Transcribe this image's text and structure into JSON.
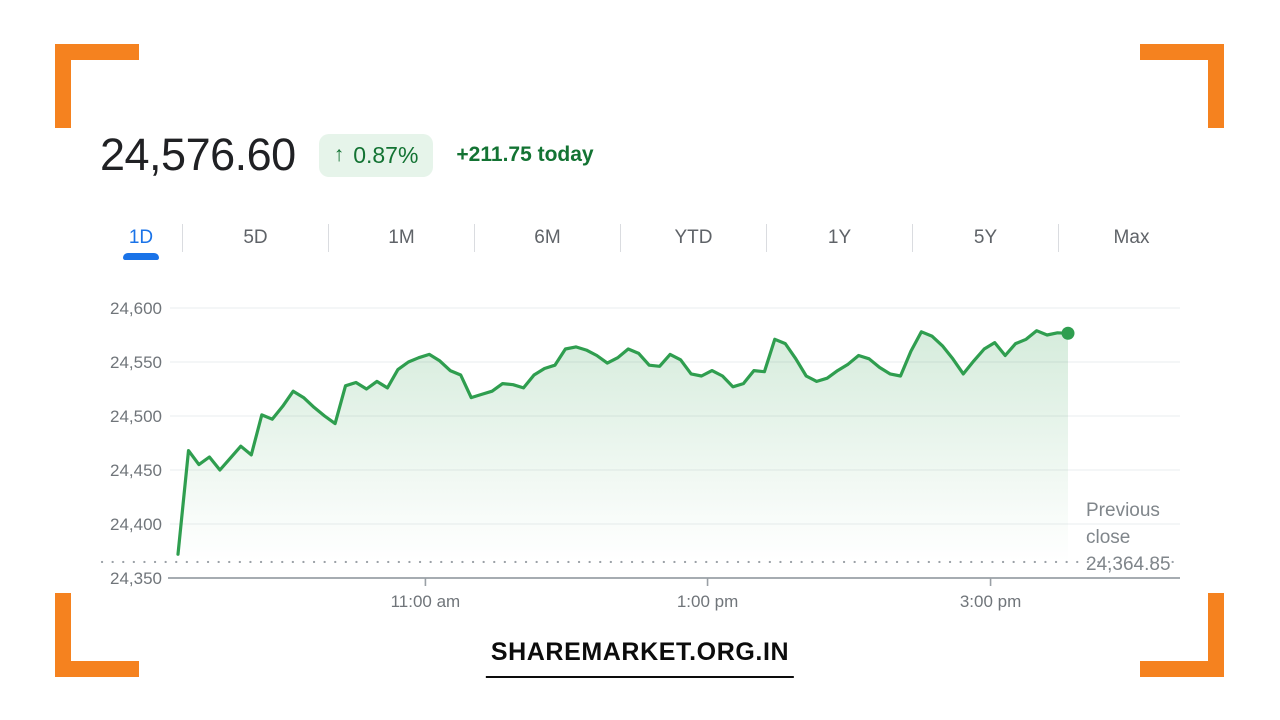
{
  "theme": {
    "accent_orange": "#F5821F",
    "up_green": "#137333",
    "badge_bg": "#e6f4ea",
    "active_blue": "#1a73e8",
    "text_dark": "#202124",
    "text_gray": "#5f6368",
    "axis_gray": "#70757a",
    "prevclose_gray": "#80868b",
    "divider": "#dadce0",
    "grid": "#eef0f2",
    "axis_line": "#9aa0a6"
  },
  "brand": {
    "watermark": "SHAREMARKET.ORG.IN"
  },
  "quote": {
    "price": "24,576.60",
    "change_arrow": "↑",
    "change_percent": "0.87%",
    "change_absolute": "+211.75 today"
  },
  "range_tabs": {
    "items": [
      {
        "label": "1D",
        "active": true
      },
      {
        "label": "5D",
        "active": false
      },
      {
        "label": "1M",
        "active": false
      },
      {
        "label": "6M",
        "active": false
      },
      {
        "label": "YTD",
        "active": false
      },
      {
        "label": "1Y",
        "active": false
      },
      {
        "label": "5Y",
        "active": false
      },
      {
        "label": "Max",
        "active": false
      }
    ]
  },
  "chart_data": {
    "type": "area",
    "line_color": "#2f9e4f",
    "grid": true,
    "ylim": [
      24350,
      24610
    ],
    "y_ticks": [
      "24,600",
      "24,550",
      "24,500",
      "24,450",
      "24,400",
      "24,350"
    ],
    "y_tick_values": [
      24600,
      24550,
      24500,
      24450,
      24400,
      24350
    ],
    "x_ticks": [
      {
        "label": "11:00 am",
        "f": 0.278
      },
      {
        "label": "1:00 pm",
        "f": 0.595
      },
      {
        "label": "3:00 pm",
        "f": 0.913
      }
    ],
    "previous_close": {
      "label": "Previous close",
      "value": "24,364.85",
      "numeric": 24364.85
    },
    "series": [
      {
        "name": "index-price-1d",
        "values": [
          24372,
          24468,
          24455,
          24462,
          24450,
          24461,
          24472,
          24464,
          24501,
          24497,
          24509,
          24523,
          24517,
          24508,
          24500,
          24493,
          24528,
          24531,
          24525,
          24532,
          24526,
          24543,
          24550,
          24554,
          24557,
          24551,
          24542,
          24538,
          24517,
          24520,
          24523,
          24530,
          24529,
          24526,
          24538,
          24544,
          24547,
          24562,
          24564,
          24561,
          24556,
          24549,
          24554,
          24562,
          24558,
          24547,
          24546,
          24557,
          24552,
          24539,
          24537,
          24542,
          24537,
          24527,
          24530,
          24542,
          24541,
          24571,
          24567,
          24553,
          24537,
          24532,
          24535,
          24542,
          24548,
          24556,
          24553,
          24545,
          24539,
          24537,
          24560,
          24578,
          24574,
          24565,
          24553,
          24539,
          24551,
          24562,
          24568,
          24556,
          24567,
          24571,
          24579,
          24575,
          24577,
          24576.6
        ]
      }
    ]
  }
}
